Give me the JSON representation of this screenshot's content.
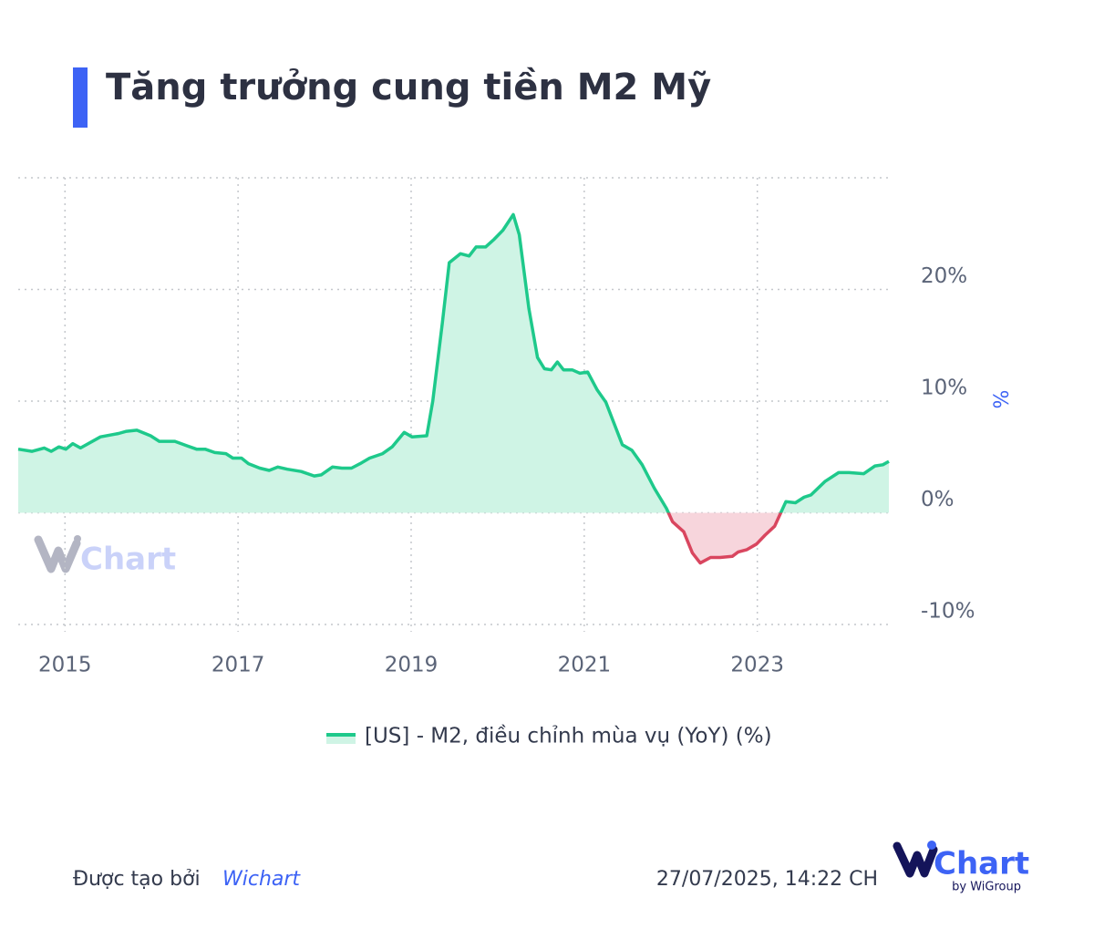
{
  "chart_data": {
    "type": "line",
    "title": "Tăng trưởng cung tiền M2 Mỹ",
    "y_label": "%",
    "x": [
      2014.46,
      2014.62,
      2014.76,
      2014.84,
      2014.93,
      2015.01,
      2015.09,
      2015.18,
      2015.41,
      2015.62,
      2015.71,
      2015.83,
      2015.99,
      2016.09,
      2016.27,
      2016.41,
      2016.52,
      2016.62,
      2016.73,
      2016.86,
      2016.94,
      2017.04,
      2017.12,
      2017.25,
      2017.36,
      2017.46,
      2017.57,
      2017.73,
      2017.88,
      2017.96,
      2018.09,
      2018.2,
      2018.31,
      2018.41,
      2018.52,
      2018.67,
      2018.78,
      2018.92,
      2019.01,
      2019.18,
      2019.25,
      2019.36,
      2019.44,
      2019.57,
      2019.67,
      2019.75,
      2019.86,
      2019.96,
      2020.06,
      2020.18,
      2020.25,
      2020.36,
      2020.46,
      2020.54,
      2020.62,
      2020.69,
      2020.76,
      2020.86,
      2020.95,
      2021.04,
      2021.15,
      2021.25,
      2021.34,
      2021.44,
      2021.55,
      2021.67,
      2021.81,
      2021.95,
      2022.02,
      2022.15,
      2022.25,
      2022.34,
      2022.46,
      2022.57,
      2022.71,
      2022.78,
      2022.88,
      2022.99,
      2023.09,
      2023.2,
      2023.33,
      2023.44,
      2023.54,
      2023.62,
      2023.78,
      2023.94,
      2024.06,
      2024.23,
      2024.36,
      2024.45,
      2024.52
    ],
    "series": [
      {
        "name": "[US] - M2, điều chỉnh mùa vụ (YoY) (%)",
        "color": "#1ec98b",
        "area_color": "#cff4e5",
        "negative_color": "#d9465f",
        "negative_area_color": "#f7d5dc",
        "values": [
          5.7,
          5.5,
          5.8,
          5.5,
          5.9,
          5.7,
          6.2,
          5.8,
          6.8,
          7.1,
          7.3,
          7.4,
          6.9,
          6.4,
          6.4,
          6.0,
          5.7,
          5.7,
          5.4,
          5.3,
          4.9,
          4.9,
          4.4,
          4.0,
          3.8,
          4.1,
          3.9,
          3.7,
          3.3,
          3.4,
          4.1,
          4.0,
          4.0,
          4.4,
          4.9,
          5.3,
          5.9,
          7.2,
          6.8,
          6.9,
          10.0,
          17.0,
          22.4,
          23.2,
          23.0,
          23.8,
          23.8,
          24.5,
          25.3,
          26.7,
          24.9,
          18.3,
          13.9,
          12.9,
          12.8,
          13.5,
          12.8,
          12.8,
          12.5,
          12.6,
          11.0,
          9.9,
          8.1,
          6.1,
          5.6,
          4.3,
          2.2,
          0.4,
          -0.8,
          -1.7,
          -3.6,
          -4.5,
          -4.0,
          -4.0,
          -3.9,
          -3.5,
          -3.3,
          -2.8,
          -2.0,
          -1.2,
          1.0,
          0.9,
          1.4,
          1.6,
          2.8,
          3.6,
          3.6,
          3.5,
          4.2,
          4.3,
          4.6
        ]
      }
    ],
    "xlim": [
      2014.46,
      2024.52
    ],
    "xticks": [
      2015,
      2017,
      2019,
      2021,
      2023
    ],
    "ylim": [
      -10,
      30
    ],
    "yticks": [
      {
        "value": -10,
        "label": "-10%"
      },
      {
        "value": 0,
        "label": "0%"
      },
      {
        "value": 10,
        "label": "10%"
      },
      {
        "value": 20,
        "label": "20%"
      }
    ],
    "grid": true,
    "legend": "bottom"
  },
  "watermark": "Chart",
  "footer": {
    "created_by": "Được tạo bởi",
    "brand": "Wichart",
    "timestamp": "27/07/2025, 14:22 CH"
  },
  "logo": {
    "text": "Chart",
    "sub": "by WiGroup"
  }
}
